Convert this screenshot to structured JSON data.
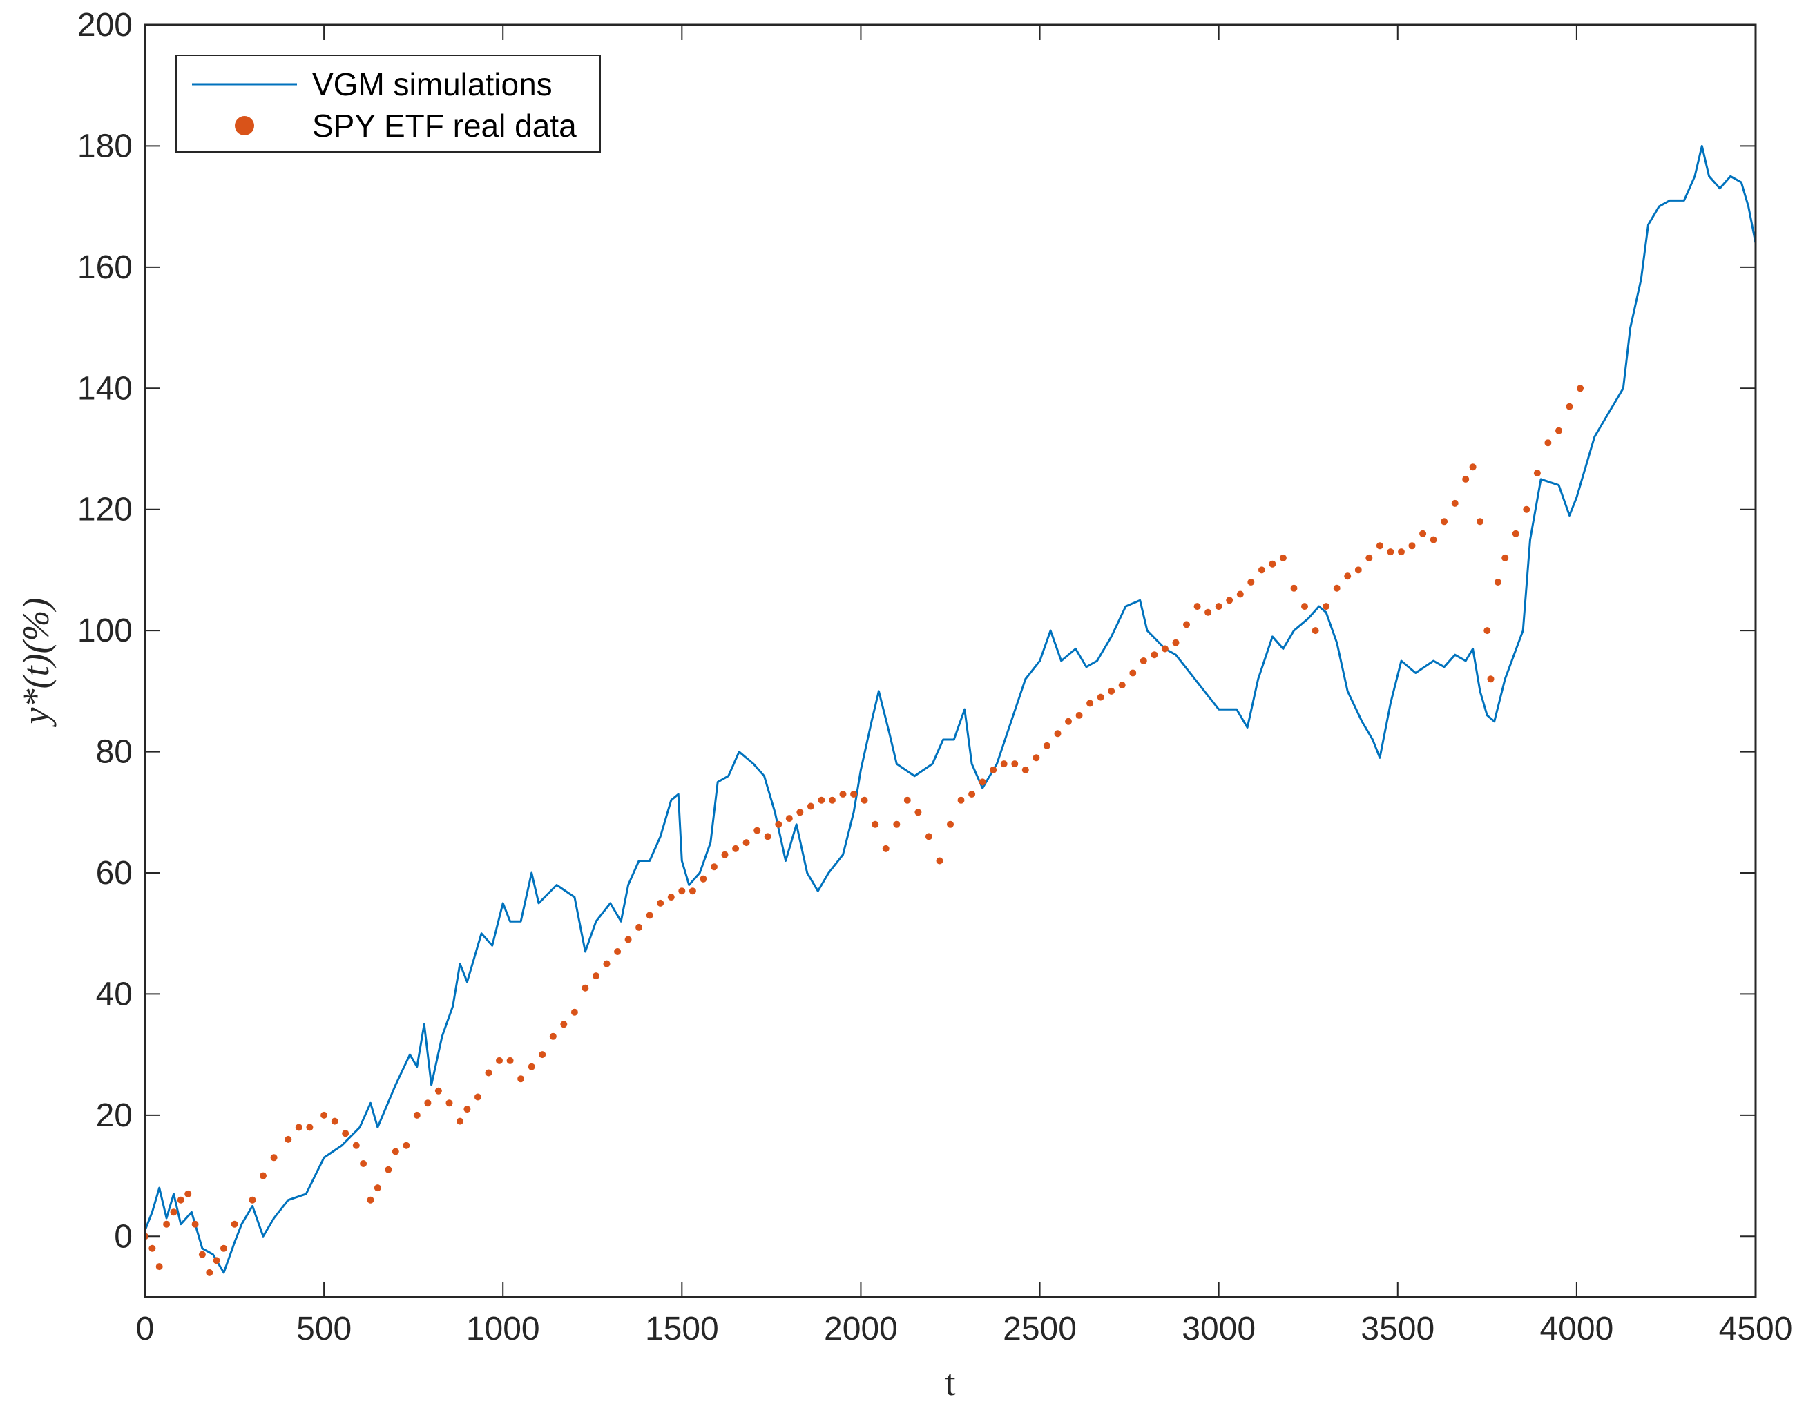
{
  "chart_data": {
    "type": "line",
    "title": "",
    "xlabel": "t",
    "ylabel": "y*(t)(%)",
    "xlim": [
      0,
      4500
    ],
    "ylim": [
      -10,
      200
    ],
    "xticks": [
      0,
      500,
      1000,
      1500,
      2000,
      2500,
      3000,
      3500,
      4000,
      4500
    ],
    "yticks": [
      0,
      20,
      40,
      60,
      80,
      100,
      120,
      140,
      160,
      180,
      200
    ],
    "legend_position": "top-left",
    "series": [
      {
        "name": "VGM simulations",
        "style": "line",
        "color": "#0072BD",
        "points": [
          [
            0,
            1
          ],
          [
            20,
            4
          ],
          [
            40,
            8
          ],
          [
            60,
            3
          ],
          [
            80,
            7
          ],
          [
            100,
            2
          ],
          [
            130,
            4
          ],
          [
            160,
            -2
          ],
          [
            190,
            -3
          ],
          [
            220,
            -6
          ],
          [
            250,
            -1
          ],
          [
            270,
            2
          ],
          [
            300,
            5
          ],
          [
            330,
            0
          ],
          [
            360,
            3
          ],
          [
            400,
            6
          ],
          [
            450,
            7
          ],
          [
            500,
            13
          ],
          [
            550,
            15
          ],
          [
            600,
            18
          ],
          [
            630,
            22
          ],
          [
            650,
            18
          ],
          [
            700,
            25
          ],
          [
            740,
            30
          ],
          [
            760,
            28
          ],
          [
            780,
            35
          ],
          [
            800,
            25
          ],
          [
            830,
            33
          ],
          [
            860,
            38
          ],
          [
            880,
            45
          ],
          [
            900,
            42
          ],
          [
            940,
            50
          ],
          [
            970,
            48
          ],
          [
            1000,
            55
          ],
          [
            1020,
            52
          ],
          [
            1050,
            52
          ],
          [
            1080,
            60
          ],
          [
            1100,
            55
          ],
          [
            1150,
            58
          ],
          [
            1200,
            56
          ],
          [
            1230,
            47
          ],
          [
            1260,
            52
          ],
          [
            1300,
            55
          ],
          [
            1330,
            52
          ],
          [
            1350,
            58
          ],
          [
            1380,
            62
          ],
          [
            1410,
            62
          ],
          [
            1440,
            66
          ],
          [
            1470,
            72
          ],
          [
            1490,
            73
          ],
          [
            1500,
            62
          ],
          [
            1520,
            58
          ],
          [
            1550,
            60
          ],
          [
            1580,
            65
          ],
          [
            1600,
            75
          ],
          [
            1630,
            76
          ],
          [
            1660,
            80
          ],
          [
            1700,
            78
          ],
          [
            1730,
            76
          ],
          [
            1760,
            70
          ],
          [
            1790,
            62
          ],
          [
            1820,
            68
          ],
          [
            1850,
            60
          ],
          [
            1880,
            57
          ],
          [
            1910,
            60
          ],
          [
            1950,
            63
          ],
          [
            1980,
            70
          ],
          [
            2000,
            77
          ],
          [
            2030,
            85
          ],
          [
            2050,
            90
          ],
          [
            2080,
            83
          ],
          [
            2100,
            78
          ],
          [
            2150,
            76
          ],
          [
            2200,
            78
          ],
          [
            2230,
            82
          ],
          [
            2260,
            82
          ],
          [
            2290,
            87
          ],
          [
            2310,
            78
          ],
          [
            2340,
            74
          ],
          [
            2380,
            78
          ],
          [
            2420,
            85
          ],
          [
            2460,
            92
          ],
          [
            2500,
            95
          ],
          [
            2530,
            100
          ],
          [
            2560,
            95
          ],
          [
            2600,
            97
          ],
          [
            2630,
            94
          ],
          [
            2660,
            95
          ],
          [
            2700,
            99
          ],
          [
            2740,
            104
          ],
          [
            2780,
            105
          ],
          [
            2800,
            100
          ],
          [
            2850,
            97
          ],
          [
            2880,
            96
          ],
          [
            2920,
            93
          ],
          [
            2960,
            90
          ],
          [
            3000,
            87
          ],
          [
            3050,
            87
          ],
          [
            3080,
            84
          ],
          [
            3110,
            92
          ],
          [
            3150,
            99
          ],
          [
            3180,
            97
          ],
          [
            3210,
            100
          ],
          [
            3250,
            102
          ],
          [
            3280,
            104
          ],
          [
            3300,
            103
          ],
          [
            3330,
            98
          ],
          [
            3360,
            90
          ],
          [
            3400,
            85
          ],
          [
            3430,
            82
          ],
          [
            3450,
            79
          ],
          [
            3480,
            88
          ],
          [
            3510,
            95
          ],
          [
            3550,
            93
          ],
          [
            3600,
            95
          ],
          [
            3630,
            94
          ],
          [
            3660,
            96
          ],
          [
            3690,
            95
          ],
          [
            3710,
            97
          ],
          [
            3730,
            90
          ],
          [
            3750,
            86
          ],
          [
            3770,
            85
          ],
          [
            3800,
            92
          ],
          [
            3850,
            100
          ],
          [
            3870,
            115
          ],
          [
            3900,
            125
          ],
          [
            3950,
            124
          ],
          [
            3980,
            119
          ],
          [
            4000,
            122
          ],
          [
            4050,
            132
          ],
          [
            4100,
            137
          ],
          [
            4130,
            140
          ],
          [
            4150,
            150
          ],
          [
            4180,
            158
          ],
          [
            4200,
            167
          ],
          [
            4230,
            170
          ],
          [
            4260,
            171
          ],
          [
            4300,
            171
          ],
          [
            4330,
            175
          ],
          [
            4350,
            180
          ],
          [
            4370,
            175
          ],
          [
            4400,
            173
          ],
          [
            4430,
            175
          ],
          [
            4460,
            174
          ],
          [
            4480,
            170
          ],
          [
            4500,
            164
          ]
        ]
      },
      {
        "name": "SPY ETF real data",
        "style": "markers",
        "color": "#D95319",
        "points": [
          [
            0,
            0
          ],
          [
            20,
            -2
          ],
          [
            40,
            -5
          ],
          [
            60,
            2
          ],
          [
            80,
            4
          ],
          [
            100,
            6
          ],
          [
            120,
            7
          ],
          [
            140,
            2
          ],
          [
            160,
            -3
          ],
          [
            180,
            -6
          ],
          [
            200,
            -4
          ],
          [
            220,
            -2
          ],
          [
            250,
            2
          ],
          [
            300,
            6
          ],
          [
            330,
            10
          ],
          [
            360,
            13
          ],
          [
            400,
            16
          ],
          [
            430,
            18
          ],
          [
            460,
            18
          ],
          [
            500,
            20
          ],
          [
            530,
            19
          ],
          [
            560,
            17
          ],
          [
            590,
            15
          ],
          [
            610,
            12
          ],
          [
            630,
            6
          ],
          [
            650,
            8
          ],
          [
            680,
            11
          ],
          [
            700,
            14
          ],
          [
            730,
            15
          ],
          [
            760,
            20
          ],
          [
            790,
            22
          ],
          [
            820,
            24
          ],
          [
            850,
            22
          ],
          [
            880,
            19
          ],
          [
            900,
            21
          ],
          [
            930,
            23
          ],
          [
            960,
            27
          ],
          [
            990,
            29
          ],
          [
            1020,
            29
          ],
          [
            1050,
            26
          ],
          [
            1080,
            28
          ],
          [
            1110,
            30
          ],
          [
            1140,
            33
          ],
          [
            1170,
            35
          ],
          [
            1200,
            37
          ],
          [
            1230,
            41
          ],
          [
            1260,
            43
          ],
          [
            1290,
            45
          ],
          [
            1320,
            47
          ],
          [
            1350,
            49
          ],
          [
            1380,
            51
          ],
          [
            1410,
            53
          ],
          [
            1440,
            55
          ],
          [
            1470,
            56
          ],
          [
            1500,
            57
          ],
          [
            1530,
            57
          ],
          [
            1560,
            59
          ],
          [
            1590,
            61
          ],
          [
            1620,
            63
          ],
          [
            1650,
            64
          ],
          [
            1680,
            65
          ],
          [
            1710,
            67
          ],
          [
            1740,
            66
          ],
          [
            1770,
            68
          ],
          [
            1800,
            69
          ],
          [
            1830,
            70
          ],
          [
            1860,
            71
          ],
          [
            1890,
            72
          ],
          [
            1920,
            72
          ],
          [
            1950,
            73
          ],
          [
            1980,
            73
          ],
          [
            2010,
            72
          ],
          [
            2040,
            68
          ],
          [
            2070,
            64
          ],
          [
            2100,
            68
          ],
          [
            2130,
            72
          ],
          [
            2160,
            70
          ],
          [
            2190,
            66
          ],
          [
            2220,
            62
          ],
          [
            2250,
            68
          ],
          [
            2280,
            72
          ],
          [
            2310,
            73
          ],
          [
            2340,
            75
          ],
          [
            2370,
            77
          ],
          [
            2400,
            78
          ],
          [
            2430,
            78
          ],
          [
            2460,
            77
          ],
          [
            2490,
            79
          ],
          [
            2520,
            81
          ],
          [
            2550,
            83
          ],
          [
            2580,
            85
          ],
          [
            2610,
            86
          ],
          [
            2640,
            88
          ],
          [
            2670,
            89
          ],
          [
            2700,
            90
          ],
          [
            2730,
            91
          ],
          [
            2760,
            93
          ],
          [
            2790,
            95
          ],
          [
            2820,
            96
          ],
          [
            2850,
            97
          ],
          [
            2880,
            98
          ],
          [
            2910,
            101
          ],
          [
            2940,
            104
          ],
          [
            2970,
            103
          ],
          [
            3000,
            104
          ],
          [
            3030,
            105
          ],
          [
            3060,
            106
          ],
          [
            3090,
            108
          ],
          [
            3120,
            110
          ],
          [
            3150,
            111
          ],
          [
            3180,
            112
          ],
          [
            3210,
            107
          ],
          [
            3240,
            104
          ],
          [
            3270,
            100
          ],
          [
            3300,
            104
          ],
          [
            3330,
            107
          ],
          [
            3360,
            109
          ],
          [
            3390,
            110
          ],
          [
            3420,
            112
          ],
          [
            3450,
            114
          ],
          [
            3480,
            113
          ],
          [
            3510,
            113
          ],
          [
            3540,
            114
          ],
          [
            3570,
            116
          ],
          [
            3600,
            115
          ],
          [
            3630,
            118
          ],
          [
            3660,
            121
          ],
          [
            3690,
            125
          ],
          [
            3710,
            127
          ],
          [
            3730,
            118
          ],
          [
            3750,
            100
          ],
          [
            3760,
            92
          ],
          [
            3780,
            108
          ],
          [
            3800,
            112
          ],
          [
            3830,
            116
          ],
          [
            3860,
            120
          ],
          [
            3890,
            126
          ],
          [
            3920,
            131
          ],
          [
            3950,
            133
          ],
          [
            3980,
            137
          ],
          [
            4010,
            140
          ]
        ]
      }
    ]
  }
}
